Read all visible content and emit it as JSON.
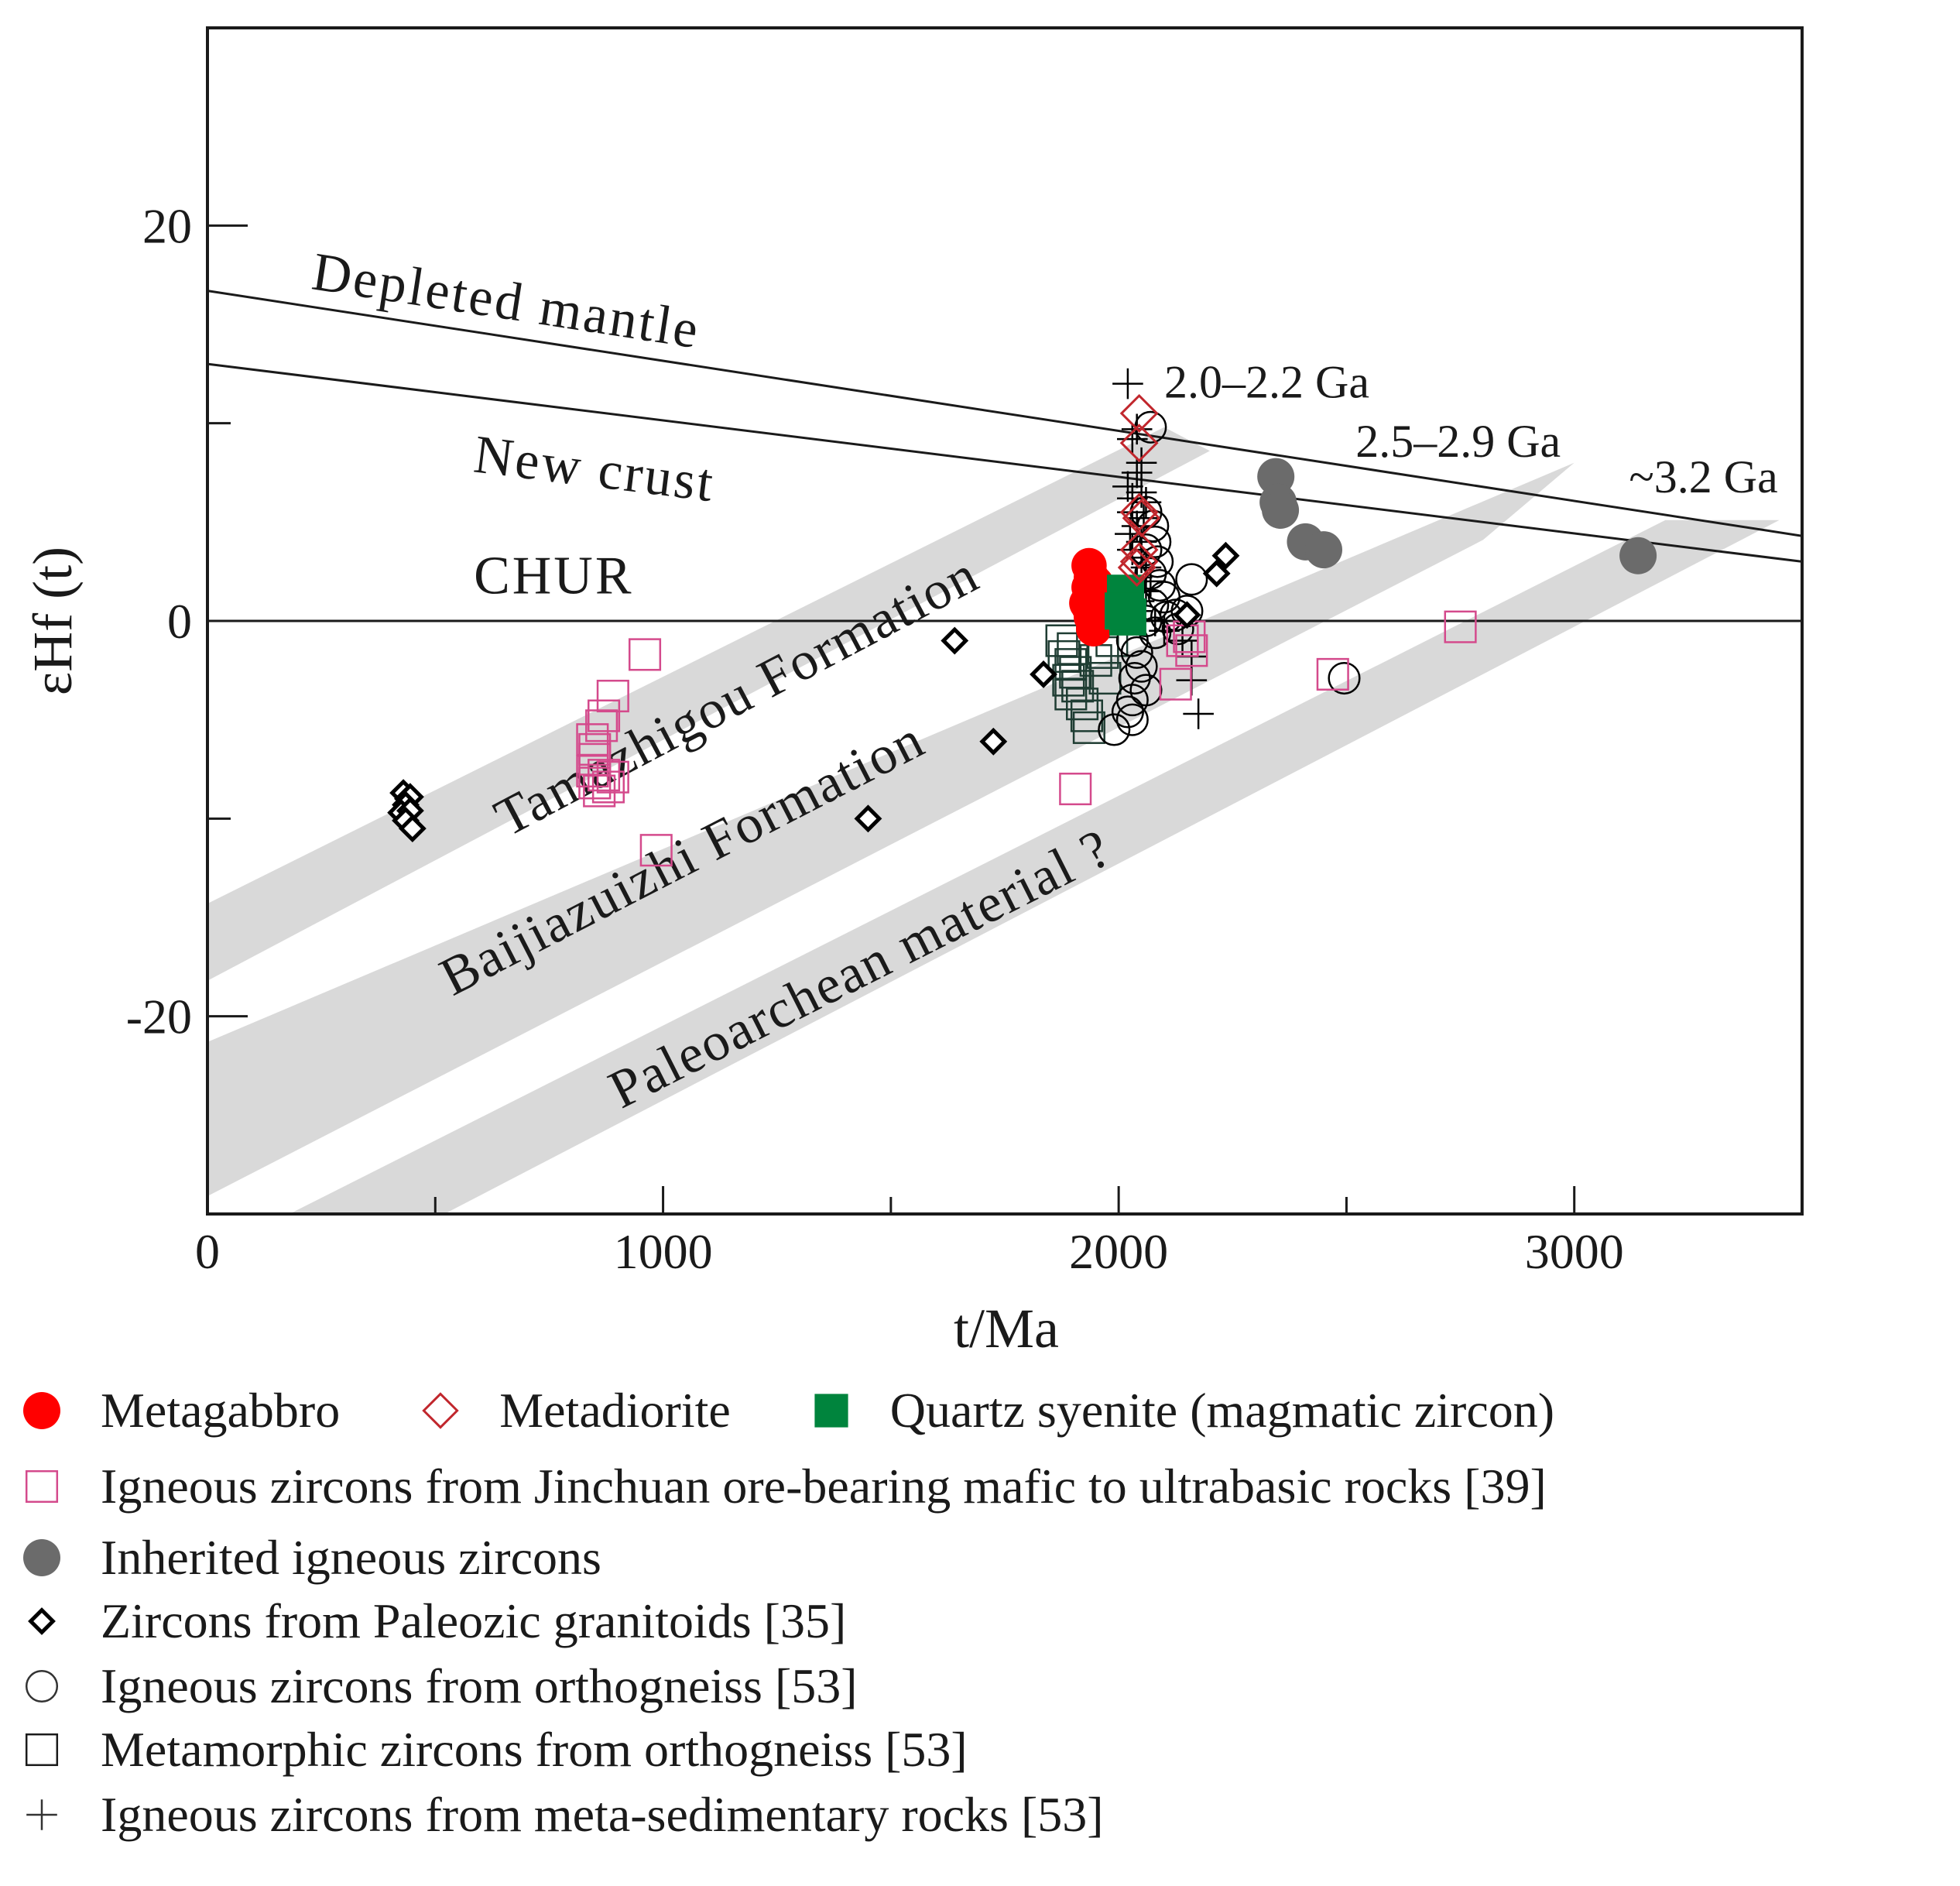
{
  "chart_data": {
    "type": "scatter",
    "title": "",
    "xlabel": "t/Ma",
    "ylabel": "εHf (t)",
    "xlim": [
      0,
      3500
    ],
    "ylim": [
      -30,
      30
    ],
    "x_ticks": [
      {
        "value": 0,
        "label": "0"
      },
      {
        "value": 1000,
        "label": "1000"
      },
      {
        "value": 2000,
        "label": "2000"
      },
      {
        "value": 3000,
        "label": "3000"
      }
    ],
    "x_minor_ticks": [
      500,
      1500,
      2500
    ],
    "y_ticks": [
      {
        "value": 20,
        "label": "20"
      },
      {
        "value": 0,
        "label": "0"
      },
      {
        "value": -20,
        "label": "-20"
      }
    ],
    "y_minor_ticks": [
      10,
      -10
    ],
    "reference_lines": [
      {
        "name": "depleted-mantle",
        "label": "Depleted mantle",
        "x": [
          0,
          3500
        ],
        "y": [
          16.7,
          4.3
        ],
        "label_at": [
          650,
          15.3
        ]
      },
      {
        "name": "new-crust",
        "label": "New crust",
        "x": [
          0,
          3500
        ],
        "y": [
          13.0,
          3.0
        ],
        "label_at": [
          845,
          6.8
        ]
      },
      {
        "name": "chur",
        "label": "CHUR",
        "x": [
          0,
          3500
        ],
        "y": [
          0,
          0
        ],
        "label_at": [
          760,
          1.4
        ]
      }
    ],
    "bands": [
      {
        "label": "Tamazhigou Formation",
        "color": "#d9d9d9",
        "lower": [
          [
            0,
            -18.2
          ],
          [
            2200,
            8.6
          ]
        ],
        "upper": [
          [
            0,
            -14.3
          ],
          [
            2100,
            9.8
          ]
        ],
        "label_at": [
          1180,
          -4.6
        ]
      },
      {
        "label": "Baijiazuizhi Formation",
        "color": "#d9d9d9",
        "lower": [
          [
            0,
            -29.1
          ],
          [
            2800,
            4.1
          ]
        ],
        "upper": [
          [
            0,
            -21.3
          ],
          [
            3000,
            8.0
          ]
        ],
        "label_at": [
          1060,
          -12.8
        ]
      },
      {
        "label": "Paleoarchean material ?",
        "color": "#d9d9d9",
        "lower": [
          [
            180,
            -30
          ],
          [
            3200,
            5.1
          ]
        ],
        "upper": [
          [
            520,
            -30
          ],
          [
            3450,
            5.1
          ]
        ],
        "label_at": [
          1450,
          -18.4
        ]
      }
    ],
    "age_labels": [
      {
        "text": "2.0–2.2 Ga",
        "x": 2100,
        "y": 11.3
      },
      {
        "text": "2.5–2.9 Ga",
        "x": 2520,
        "y": 8.3
      },
      {
        "text": "~3.2 Ga",
        "x": 3120,
        "y": 6.5
      }
    ],
    "series": [
      {
        "name": "Metagabbro",
        "symbol": "filled-circle",
        "color": "#ff0000",
        "points": [
          [
            1935,
            2.8
          ],
          [
            1940,
            2.2
          ],
          [
            1935,
            1.7
          ],
          [
            1940,
            1.2
          ],
          [
            1935,
            0.7
          ],
          [
            1940,
            0.2
          ],
          [
            1945,
            -0.4
          ],
          [
            1950,
            1.9
          ],
          [
            1930,
            0.9
          ],
          [
            1950,
            0.6
          ]
        ]
      },
      {
        "name": "Metadiorite",
        "symbol": "open-diamond",
        "color": "#c1272d",
        "points": [
          [
            2045,
            10.5
          ],
          [
            2045,
            9.0
          ],
          [
            2045,
            5.5
          ],
          [
            2050,
            5.2
          ],
          [
            2045,
            3.6
          ],
          [
            2045,
            3.0
          ],
          [
            2040,
            2.7
          ]
        ]
      },
      {
        "name": "Quartz syenite (magmatic zircon)",
        "symbol": "filled-square",
        "color": "#00843d",
        "points": [
          [
            2015,
            1.4
          ],
          [
            2015,
            0.8
          ],
          [
            2020,
            0.2
          ],
          [
            2010,
            0.5
          ]
        ]
      },
      {
        "name": "Igneous zircons from Jinchuan ore-bearing mafic to ultrabasic rocks [39]",
        "symbol": "open-square",
        "color": "#d44a8c",
        "points": [
          [
            960,
            -1.7
          ],
          [
            890,
            -3.8
          ],
          [
            870,
            -4.8
          ],
          [
            865,
            -5.3
          ],
          [
            845,
            -6.0
          ],
          [
            850,
            -6.5
          ],
          [
            850,
            -7.0
          ],
          [
            845,
            -7.6
          ],
          [
            870,
            -7.8
          ],
          [
            890,
            -7.9
          ],
          [
            850,
            -8.2
          ],
          [
            880,
            -8.4
          ],
          [
            860,
            -8.6
          ],
          [
            985,
            -11.6
          ],
          [
            1905,
            -8.5
          ],
          [
            2125,
            -3.2
          ],
          [
            2160,
            -1.5
          ],
          [
            2140,
            -1.0
          ],
          [
            2155,
            -0.8
          ],
          [
            2470,
            -2.7
          ],
          [
            2750,
            -0.3
          ]
        ]
      },
      {
        "name": "Inherited igneous zircons",
        "symbol": "filled-circle",
        "color": "#6b6b6b",
        "points": [
          [
            2345,
            7.3
          ],
          [
            2350,
            6.0
          ],
          [
            2355,
            5.6
          ],
          [
            2410,
            4.0
          ],
          [
            2450,
            3.6
          ],
          [
            3140,
            3.3
          ]
        ]
      },
      {
        "name": "Zircons from Paleozic granitoids [35]",
        "symbol": "bold-diamond",
        "color": "#000000",
        "points": [
          [
            430,
            -8.7
          ],
          [
            440,
            -9.0
          ],
          [
            445,
            -8.9
          ],
          [
            435,
            -9.3
          ],
          [
            425,
            -9.7
          ],
          [
            445,
            -9.6
          ],
          [
            435,
            -10.1
          ],
          [
            450,
            -10.5
          ],
          [
            1640,
            -1.0
          ],
          [
            1835,
            -2.7
          ],
          [
            1725,
            -6.1
          ],
          [
            1450,
            -10.0
          ],
          [
            2235,
            3.3
          ],
          [
            2215,
            2.4
          ],
          [
            2150,
            0.3
          ]
        ]
      },
      {
        "name": "Igneous zircons from orthogneiss [53]",
        "symbol": "open-circle",
        "color": "#000000",
        "points": [
          [
            2070,
            9.8
          ],
          [
            2060,
            5.5
          ],
          [
            2075,
            4.8
          ],
          [
            2080,
            4.0
          ],
          [
            2060,
            3.6
          ],
          [
            2085,
            3.0
          ],
          [
            2070,
            2.4
          ],
          [
            2090,
            1.8
          ],
          [
            2100,
            1.2
          ],
          [
            2075,
            0.8
          ],
          [
            2060,
            0.0
          ],
          [
            2080,
            -0.6
          ],
          [
            2030,
            -1.0
          ],
          [
            2040,
            -1.6
          ],
          [
            2050,
            -2.3
          ],
          [
            2035,
            -2.9
          ],
          [
            2060,
            -3.5
          ],
          [
            2030,
            -4.0
          ],
          [
            2020,
            -4.6
          ],
          [
            2030,
            -5.0
          ],
          [
            1990,
            -5.5
          ],
          [
            2105,
            0.2
          ],
          [
            2125,
            0.3
          ],
          [
            2150,
            0.5
          ],
          [
            2130,
            -0.4
          ],
          [
            2160,
            2.1
          ],
          [
            2495,
            -2.9
          ]
        ]
      },
      {
        "name": "Metamorphic zircons from orthogneiss [53]",
        "symbol": "open-square",
        "color": "#1f3d33",
        "points": [
          [
            1875,
            -1.0
          ],
          [
            1900,
            -1.4
          ],
          [
            1880,
            -1.8
          ],
          [
            1895,
            -2.2
          ],
          [
            1905,
            -2.6
          ],
          [
            1890,
            -3.0
          ],
          [
            1910,
            -3.3
          ],
          [
            1895,
            -3.7
          ],
          [
            1920,
            -4.2
          ],
          [
            1930,
            -4.8
          ],
          [
            1935,
            -5.4
          ],
          [
            1950,
            -2.0
          ],
          [
            1965,
            -1.6
          ],
          [
            1970,
            -2.9
          ],
          [
            1985,
            -1.0
          ],
          [
            1955,
            0.2
          ],
          [
            1990,
            0.5
          ]
        ]
      },
      {
        "name": "Igneous zircons from meta-sedimentary rocks [53]",
        "symbol": "plus",
        "color": "#000000",
        "points": [
          [
            2020,
            12.0
          ],
          [
            2040,
            9.7
          ],
          [
            2030,
            9.2
          ],
          [
            2050,
            8.0
          ],
          [
            2040,
            7.5
          ],
          [
            2020,
            6.8
          ],
          [
            2050,
            6.5
          ],
          [
            2030,
            6.2
          ],
          [
            2060,
            6.0
          ],
          [
            2030,
            5.5
          ],
          [
            2055,
            5.2
          ],
          [
            2040,
            4.8
          ],
          [
            2025,
            4.4
          ],
          [
            2050,
            4.0
          ],
          [
            2030,
            3.6
          ],
          [
            2050,
            3.2
          ],
          [
            2060,
            2.7
          ],
          [
            2040,
            2.2
          ],
          [
            2070,
            2.0
          ],
          [
            2060,
            1.5
          ],
          [
            2045,
            1.0
          ],
          [
            2040,
            0.5
          ],
          [
            2080,
            0.0
          ],
          [
            2100,
            -0.5
          ],
          [
            2140,
            -1.0
          ],
          [
            2160,
            -1.8
          ],
          [
            2160,
            -3.0
          ],
          [
            2175,
            -4.7
          ]
        ]
      }
    ],
    "legend_rows": [
      [
        {
          "series": 0,
          "symbol": "filled-circle",
          "color": "#ff0000",
          "label": "Metagabbro"
        },
        {
          "series": 1,
          "symbol": "open-diamond",
          "color": "#c1272d",
          "label": "Metadiorite"
        },
        {
          "series": 2,
          "symbol": "filled-square",
          "color": "#00843d",
          "label": "Quartz syenite  (magmatic zircon)"
        }
      ],
      [
        {
          "series": 3,
          "symbol": "open-square",
          "color": "#d44a8c",
          "label": "Igneous zircons from Jinchuan ore-bearing mafic to ultrabasic rocks [39]"
        }
      ],
      [
        {
          "series": 4,
          "symbol": "filled-circle",
          "color": "#6b6b6b",
          "label": "Inherited igneous zircons"
        }
      ],
      [
        {
          "series": 5,
          "symbol": "bold-diamond",
          "color": "#000000",
          "label": "Zircons from Paleozic granitoids [35]"
        }
      ],
      [
        {
          "series": 6,
          "symbol": "open-circle",
          "color": "#333333",
          "label": "Igneous zircons from orthogneiss [53]"
        }
      ],
      [
        {
          "series": 7,
          "symbol": "open-square",
          "color": "#1a1a1a",
          "label": "Metamorphic zircons from orthogneiss [53]"
        }
      ],
      [
        {
          "series": 8,
          "symbol": "plus",
          "color": "#333333",
          "label": "Igneous zircons from meta-sedimentary rocks [53]"
        }
      ]
    ]
  }
}
